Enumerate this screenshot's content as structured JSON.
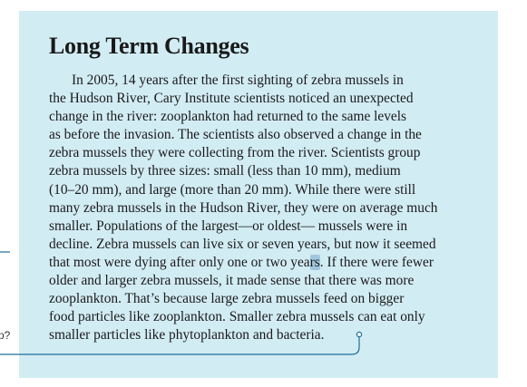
{
  "section": {
    "title": "Long Term Changes",
    "lines": [
      "In 2005, 14 years after the first sighting of zebra mussels in",
      "the Hudson River, Cary Institute scientists noticed an unexpected",
      "change in the river: zooplankton had returned to the same levels",
      "as before the invasion. The scientists also observed a change in the",
      "zebra mussels they were collecting from the river. Scientists group",
      "zebra mussels by three sizes: small (less than 10 mm), medium",
      "(10–20 mm), and large (more than 20 mm). While there were still",
      "many zebra mussels in the Hudson River, they were on average much",
      "smaller. Populations of the largest—or oldest— mussels were in",
      "decline. Zebra mussels can live six or seven years, but now it seemed"
    ],
    "line_highlight": {
      "before": "that most were dying after only one or two yea",
      "highlighted": "rs",
      "after": ". If there were fewer"
    },
    "lines_end": [
      "older and larger zebra mussels, it made sense that there was more",
      "zooplankton. That’s because large zebra mussels feed on bigger",
      "food particles like zooplankton. Smaller zebra mussels can eat only",
      "smaller particles like phytoplankton and bacteria."
    ]
  },
  "side_question_fragment": "p?",
  "colors": {
    "panel_background": "#d2ecf4",
    "connector_line": "#1f6f99",
    "highlight": "#9fc6dd",
    "text": "#1a1a1a"
  }
}
